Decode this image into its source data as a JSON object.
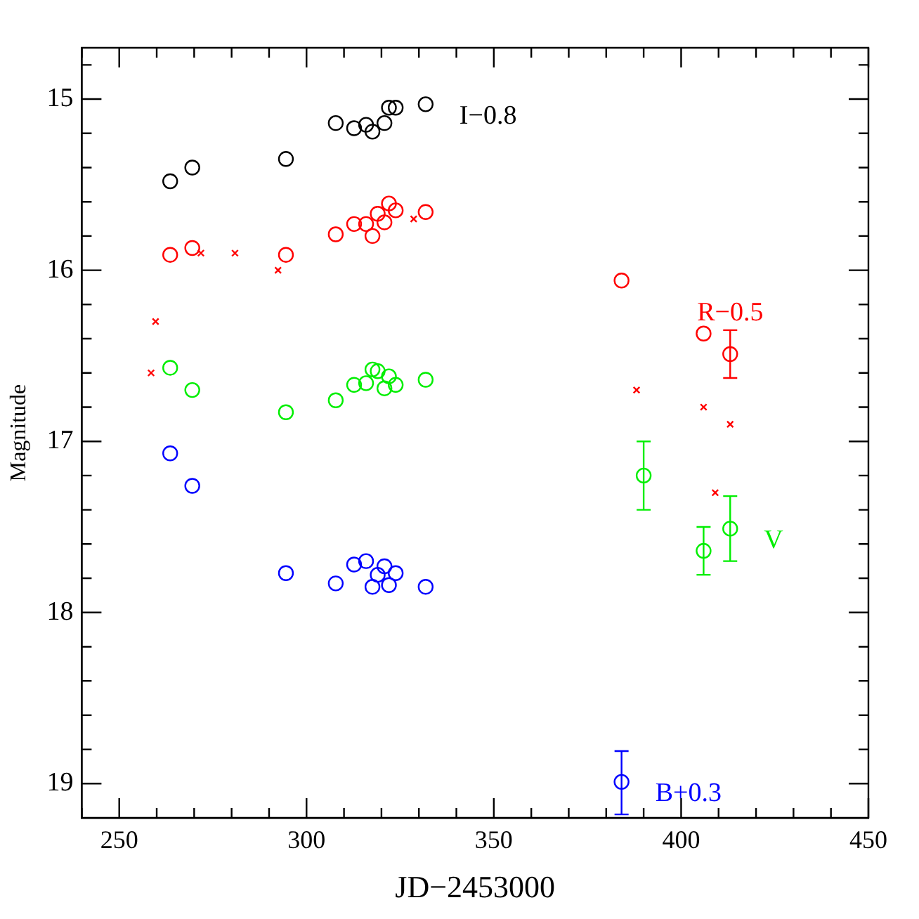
{
  "chart_data": {
    "type": "scatter",
    "xlabel": "JD−2453000",
    "ylabel": "Magnitude",
    "xlim": [
      240,
      450
    ],
    "ylim": [
      19.2,
      14.7
    ],
    "xticks": [
      {
        "value": 240,
        "label": null
      },
      250,
      {
        "value": 260,
        "label": null
      },
      {
        "value": 270,
        "label": null
      },
      {
        "value": 280,
        "label": null
      },
      {
        "value": 290,
        "label": null
      },
      300,
      {
        "value": 310,
        "label": null
      },
      {
        "value": 320,
        "label": null
      },
      {
        "value": 330,
        "label": null
      },
      {
        "value": 340,
        "label": null
      },
      350,
      {
        "value": 360,
        "label": null
      },
      {
        "value": 370,
        "label": null
      },
      {
        "value": 380,
        "label": null
      },
      {
        "value": 390,
        "label": null
      },
      400,
      {
        "value": 410,
        "label": null
      },
      {
        "value": 420,
        "label": null
      },
      {
        "value": 430,
        "label": null
      },
      {
        "value": 440,
        "label": null
      },
      450
    ],
    "yticks": [
      {
        "value": 14.8,
        "label": null
      },
      15,
      {
        "value": 15.2,
        "label": null
      },
      {
        "value": 15.4,
        "label": null
      },
      {
        "value": 15.6,
        "label": null
      },
      {
        "value": 15.8,
        "label": null
      },
      16,
      {
        "value": 16.2,
        "label": null
      },
      {
        "value": 16.4,
        "label": null
      },
      {
        "value": 16.6,
        "label": null
      },
      {
        "value": 16.8,
        "label": null
      },
      17,
      {
        "value": 17.2,
        "label": null
      },
      {
        "value": 17.4,
        "label": null
      },
      {
        "value": 17.6,
        "label": null
      },
      {
        "value": 17.8,
        "label": null
      },
      18,
      {
        "value": 18.2,
        "label": null
      },
      {
        "value": 18.4,
        "label": null
      },
      {
        "value": 18.6,
        "label": null
      },
      {
        "value": 18.8,
        "label": null
      },
      19
    ],
    "grid": false,
    "legend": false,
    "series": [
      {
        "name": "I−0.8",
        "color": "#000000",
        "marker": "circle",
        "x": [
          263.6,
          269.5,
          294.5,
          307.8,
          312.7,
          315.9,
          317.6,
          320.8,
          322,
          323.8,
          331.8
        ],
        "values": [
          15.48,
          15.4,
          15.35,
          15.14,
          15.17,
          15.15,
          15.19,
          15.14,
          15.05,
          15.05,
          15.03
        ]
      },
      {
        "name": "R−0.5",
        "color": "#ff0000",
        "marker": "circle",
        "x": [
          263.6,
          269.5,
          294.5,
          307.8,
          312.7,
          315.9,
          317.6,
          319,
          320.8,
          322,
          323.8,
          331.8,
          384.1,
          406,
          413.1
        ],
        "values": [
          15.91,
          15.87,
          15.91,
          15.79,
          15.73,
          15.73,
          15.8,
          15.67,
          15.72,
          15.61,
          15.65,
          15.66,
          16.06,
          16.37,
          16.49
        ],
        "errors": [
          null,
          null,
          null,
          null,
          null,
          null,
          null,
          null,
          null,
          null,
          null,
          null,
          null,
          null,
          [
            16.35,
            16.63
          ]
        ]
      },
      {
        "color": "#ff0000",
        "marker": "cross",
        "x": [
          258.5,
          259.7,
          271.8,
          280.9,
          292.4,
          328.6,
          388.1,
          406,
          409.1,
          413.1
        ],
        "values": [
          16.6,
          16.3,
          15.9,
          15.9,
          16.0,
          15.7,
          16.7,
          16.8,
          17.3,
          16.9
        ]
      },
      {
        "name": "V",
        "color": "#00ee00",
        "marker": "circle",
        "x": [
          263.6,
          269.5,
          294.5,
          307.8,
          312.7,
          315.9,
          317.6,
          319,
          320.8,
          322,
          323.8,
          331.8,
          390,
          406,
          413.1
        ],
        "values": [
          16.57,
          16.7,
          16.83,
          16.76,
          16.67,
          16.66,
          16.58,
          16.59,
          16.69,
          16.62,
          16.67,
          16.64,
          17.2,
          17.64,
          17.51
        ],
        "errors": [
          null,
          null,
          null,
          null,
          null,
          null,
          null,
          null,
          null,
          null,
          null,
          null,
          [
            17.0,
            17.4
          ],
          [
            17.5,
            17.78
          ],
          [
            17.32,
            17.7
          ]
        ]
      },
      {
        "name": "B+0.3",
        "color": "#0000ff",
        "marker": "circle",
        "x": [
          263.6,
          269.5,
          294.5,
          307.8,
          312.7,
          315.9,
          317.6,
          319,
          320.8,
          322,
          323.8,
          331.8,
          384.1
        ],
        "values": [
          17.07,
          17.26,
          17.77,
          17.83,
          17.72,
          17.7,
          17.85,
          17.78,
          17.73,
          17.84,
          17.77,
          17.85,
          18.99
        ],
        "errors": [
          null,
          null,
          null,
          null,
          null,
          null,
          null,
          null,
          null,
          null,
          null,
          null,
          [
            18.81,
            19.18
          ]
        ]
      }
    ]
  }
}
